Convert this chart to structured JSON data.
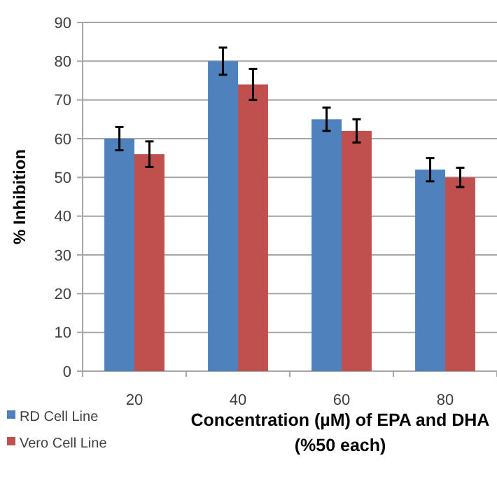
{
  "chart_data": {
    "type": "bar",
    "xlabel": "Concentration (µM) of EPA and DHA\n(%50 each)",
    "ylabel": "% Inhibition",
    "categories": [
      "20",
      "40",
      "60",
      "80"
    ],
    "series": [
      {
        "name": "RD Cell Line",
        "color": "#4f81bd",
        "values": [
          60,
          80,
          65,
          52
        ],
        "errors": [
          3,
          3.5,
          3,
          3
        ]
      },
      {
        "name": "Vero Cell Line",
        "color": "#c0504d",
        "values": [
          56,
          74,
          62,
          50
        ],
        "errors": [
          3.3,
          4,
          3,
          2.5
        ]
      }
    ],
    "ylim": [
      0,
      90
    ],
    "yticks": [
      0,
      10,
      20,
      30,
      40,
      50,
      60,
      70,
      80,
      90
    ],
    "grid": "y",
    "legend": "bottom left"
  }
}
